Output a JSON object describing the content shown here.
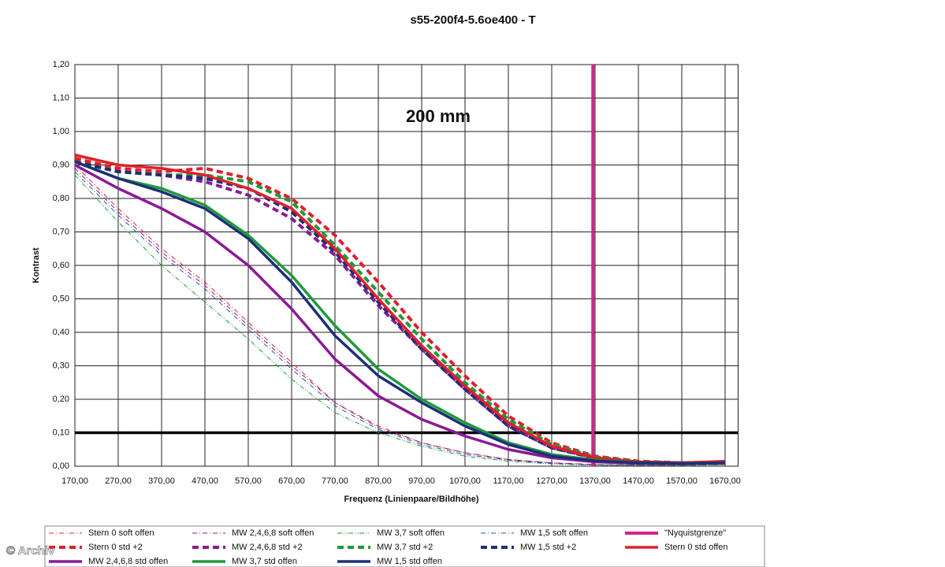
{
  "chart_data": {
    "type": "line",
    "title": "s55-200f4-5.6oe400 - T",
    "annotation": "200 mm",
    "x_label": "Frequenz (Linienpaare/Bildhöhe)",
    "y_label": "Kontrast",
    "watermark": "© Archiv",
    "x": [
      170,
      270,
      370,
      470,
      570,
      670,
      770,
      870,
      970,
      1070,
      1170,
      1270,
      1370,
      1470,
      1570,
      1670
    ],
    "xlim": [
      170,
      1700
    ],
    "ylim": [
      0,
      1.2
    ],
    "xticks": [
      {
        "value": 170,
        "label": "170,00"
      },
      {
        "value": 270,
        "label": "270,00"
      },
      {
        "value": 370,
        "label": "370,00"
      },
      {
        "value": 470,
        "label": "470,00"
      },
      {
        "value": 570,
        "label": "570,00"
      },
      {
        "value": 670,
        "label": "670,00"
      },
      {
        "value": 770,
        "label": "770,00"
      },
      {
        "value": 870,
        "label": "870,00"
      },
      {
        "value": 970,
        "label": "970,00"
      },
      {
        "value": 1070,
        "label": "1070,00"
      },
      {
        "value": 1170,
        "label": "1170,00"
      },
      {
        "value": 1270,
        "label": "1270,00"
      },
      {
        "value": 1370,
        "label": "1370,00"
      },
      {
        "value": 1470,
        "label": "1470,00"
      },
      {
        "value": 1570,
        "label": "1570,00"
      },
      {
        "value": 1670,
        "label": "1670,00"
      }
    ],
    "yticks": [
      {
        "value": 0,
        "label": "0,00"
      },
      {
        "value": 0.1,
        "label": "0,10"
      },
      {
        "value": 0.2,
        "label": "0,20"
      },
      {
        "value": 0.3,
        "label": "0,30"
      },
      {
        "value": 0.4,
        "label": "0,40"
      },
      {
        "value": 0.5,
        "label": "0,50"
      },
      {
        "value": 0.6,
        "label": "0,60"
      },
      {
        "value": 0.7,
        "label": "0,70"
      },
      {
        "value": 0.8,
        "label": "0,80"
      },
      {
        "value": 0.9,
        "label": "0,90"
      },
      {
        "value": 1,
        "label": "1,00"
      },
      {
        "value": 1.1,
        "label": "1,10"
      },
      {
        "value": 1.2,
        "label": "1,20"
      }
    ],
    "grid": true,
    "reference_line": {
      "value": 0.1,
      "color": "#000000"
    },
    "series": [
      {
        "name": "Stern 0 soft offen",
        "color": "#e0202a",
        "width": 1,
        "dash": "6 3 1 3",
        "values": [
          0.9,
          0.77,
          0.65,
          0.55,
          0.43,
          0.31,
          0.19,
          0.12,
          0.07,
          0.04,
          0.02,
          0.01,
          0.005,
          0.003,
          0.003,
          0.005
        ]
      },
      {
        "name": "MW 2,4,6,8 soft offen",
        "color": "#8a1a96",
        "width": 1,
        "dash": "6 3 1 3",
        "values": [
          0.89,
          0.76,
          0.64,
          0.54,
          0.42,
          0.3,
          0.19,
          0.115,
          0.07,
          0.04,
          0.02,
          0.01,
          0.005,
          0.003,
          0.003,
          0.005
        ]
      },
      {
        "name": "MW 3,7 soft offen",
        "color": "#1e9a3a",
        "width": 1,
        "dash": "6 2 1 2 1 2",
        "values": [
          0.87,
          0.73,
          0.6,
          0.49,
          0.38,
          0.26,
          0.16,
          0.1,
          0.06,
          0.03,
          0.015,
          0.007,
          0.003,
          0.002,
          0.002,
          0.004
        ]
      },
      {
        "name": "MW 1,5 soft offen",
        "color": "#2a5aa0",
        "width": 1,
        "dash": "6 3 1 3",
        "values": [
          0.88,
          0.75,
          0.63,
          0.53,
          0.41,
          0.29,
          0.18,
          0.11,
          0.065,
          0.035,
          0.018,
          0.008,
          0.004,
          0.003,
          0.003,
          0.005
        ]
      },
      {
        "name": "\"Nyquistgrenze\"",
        "color": "#d4238c",
        "width": 4,
        "dash": "",
        "x": [
          1365,
          1365
        ],
        "values": [
          0,
          1.2
        ]
      },
      {
        "name": "Stern 0 std +2",
        "color": "#e0202a",
        "width": 4,
        "dash": "8 5",
        "values": [
          0.92,
          0.89,
          0.88,
          0.89,
          0.86,
          0.8,
          0.69,
          0.55,
          0.4,
          0.27,
          0.15,
          0.07,
          0.03,
          0.015,
          0.01,
          0.012
        ]
      },
      {
        "name": "MW 2,4,6,8 std +2",
        "color": "#8a1a96",
        "width": 4,
        "dash": "8 5",
        "values": [
          0.91,
          0.88,
          0.87,
          0.85,
          0.81,
          0.74,
          0.63,
          0.48,
          0.35,
          0.23,
          0.12,
          0.055,
          0.025,
          0.012,
          0.01,
          0.012
        ]
      },
      {
        "name": "MW 3,7 std +2",
        "color": "#1e9a3a",
        "width": 4,
        "dash": "8 5",
        "values": [
          0.91,
          0.88,
          0.87,
          0.87,
          0.85,
          0.79,
          0.66,
          0.52,
          0.38,
          0.25,
          0.14,
          0.065,
          0.028,
          0.013,
          0.01,
          0.012
        ]
      },
      {
        "name": "MW 1,5 std +2",
        "color": "#1c2f78",
        "width": 4,
        "dash": "8 5",
        "values": [
          0.91,
          0.88,
          0.87,
          0.86,
          0.83,
          0.76,
          0.64,
          0.49,
          0.35,
          0.23,
          0.12,
          0.055,
          0.024,
          0.012,
          0.01,
          0.012
        ]
      },
      {
        "name": "Stern 0 std offen",
        "color": "#e0202a",
        "width": 3.5,
        "dash": "",
        "values": [
          0.93,
          0.9,
          0.89,
          0.87,
          0.83,
          0.77,
          0.65,
          0.5,
          0.36,
          0.24,
          0.13,
          0.06,
          0.025,
          0.012,
          0.01,
          0.015
        ]
      },
      {
        "name": "MW 2,4,6,8 std offen",
        "color": "#8a1a96",
        "width": 3.5,
        "dash": "",
        "values": [
          0.9,
          0.83,
          0.77,
          0.7,
          0.6,
          0.47,
          0.32,
          0.21,
          0.14,
          0.09,
          0.05,
          0.025,
          0.013,
          0.008,
          0.007,
          0.01
        ]
      },
      {
        "name": "MW 3,7 std offen",
        "color": "#1e9a3a",
        "width": 3.5,
        "dash": "",
        "values": [
          0.91,
          0.86,
          0.83,
          0.78,
          0.69,
          0.57,
          0.42,
          0.29,
          0.2,
          0.13,
          0.07,
          0.035,
          0.018,
          0.01,
          0.008,
          0.01
        ]
      },
      {
        "name": "MW 1,5 std offen",
        "color": "#1c2f78",
        "width": 3.5,
        "dash": "",
        "values": [
          0.91,
          0.86,
          0.82,
          0.77,
          0.68,
          0.55,
          0.39,
          0.27,
          0.19,
          0.12,
          0.065,
          0.03,
          0.016,
          0.01,
          0.008,
          0.01
        ]
      }
    ]
  }
}
